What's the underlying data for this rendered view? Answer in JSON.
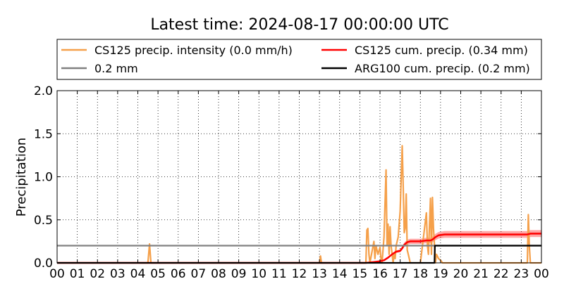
{
  "chart_data": {
    "type": "line",
    "title": "Latest time: 2024-08-17 00:00:00 UTC",
    "xlabel": "",
    "ylabel": "Precipitation",
    "x_ticks": [
      "00",
      "01",
      "02",
      "03",
      "04",
      "05",
      "06",
      "07",
      "08",
      "09",
      "10",
      "11",
      "12",
      "13",
      "14",
      "15",
      "16",
      "17",
      "18",
      "19",
      "20",
      "21",
      "22",
      "23",
      "00"
    ],
    "y_ticks": [
      "0.0",
      "0.5",
      "1.0",
      "1.5",
      "2.0"
    ],
    "xlim": [
      0,
      24
    ],
    "ylim": [
      0,
      2.0
    ],
    "grid": true,
    "legend_position": "top",
    "legend": [
      {
        "name": "CS125 precip. intensity (0.0 mm/h)",
        "color": "#f5a04a"
      },
      {
        "name": "CS125 cum. precip. (0.34 mm)",
        "color": "#ff0000"
      },
      {
        "name": "0.2 mm",
        "color": "#808080"
      },
      {
        "name": "ARG100 cum. precip. (0.2 mm)",
        "color": "#000000"
      }
    ],
    "series": [
      {
        "name": "CS125 precip. intensity (0.0 mm/h)",
        "color": "#f5a04a",
        "x": [
          0,
          4.5,
          4.58,
          4.65,
          4.75,
          13.0,
          13.05,
          13.1,
          15.3,
          15.35,
          15.4,
          15.45,
          15.5,
          15.7,
          15.75,
          15.8,
          15.9,
          16.0,
          16.05,
          16.1,
          16.2,
          16.3,
          16.35,
          16.4,
          16.45,
          16.5,
          16.55,
          16.6,
          16.65,
          16.7,
          16.75,
          16.8,
          16.9,
          17.0,
          17.1,
          17.15,
          17.2,
          17.25,
          17.3,
          17.35,
          17.4,
          17.45,
          17.5,
          17.6,
          18.0,
          18.3,
          18.35,
          18.4,
          18.5,
          18.55,
          18.6,
          18.65,
          18.7,
          18.75,
          18.8,
          18.9,
          19.0,
          19.1,
          19.2,
          23.3,
          23.35,
          23.4,
          23.45,
          23.5,
          24.0
        ],
        "y": [
          0,
          0,
          0.22,
          0,
          0,
          0,
          0.08,
          0,
          0,
          0.38,
          0.4,
          0.1,
          0,
          0.25,
          0.05,
          0.2,
          0.1,
          0.18,
          0.05,
          0,
          0.3,
          1.08,
          0.2,
          0.45,
          0.1,
          0.42,
          0.2,
          0.1,
          0,
          0.1,
          0.05,
          0.2,
          0.3,
          0.6,
          1.36,
          0.9,
          0.35,
          0.4,
          0.8,
          0.15,
          0.1,
          0.05,
          0,
          0,
          0,
          0.58,
          0.2,
          0.1,
          0.75,
          0.1,
          0.76,
          0.4,
          0.2,
          0,
          0.1,
          0.05,
          0.03,
          0,
          0,
          0,
          0.56,
          0.2,
          0,
          0,
          0
        ]
      },
      {
        "name": "CS125 cum. precip. (0.34 mm)",
        "color": "#ff0000",
        "x": [
          0,
          15.3,
          15.5,
          15.7,
          15.85,
          16.0,
          16.2,
          16.4,
          16.5,
          16.6,
          16.8,
          17.0,
          17.1,
          17.2,
          17.35,
          17.5,
          17.7,
          18.0,
          18.3,
          18.5,
          18.6,
          18.75,
          18.9,
          19.2,
          20.0,
          21.0,
          22.0,
          23.0,
          23.3,
          23.45,
          24.0
        ],
        "y": [
          0,
          0,
          0.005,
          0.01,
          0.015,
          0.02,
          0.03,
          0.06,
          0.08,
          0.1,
          0.13,
          0.14,
          0.17,
          0.21,
          0.24,
          0.25,
          0.25,
          0.25,
          0.26,
          0.26,
          0.27,
          0.3,
          0.32,
          0.33,
          0.33,
          0.33,
          0.33,
          0.33,
          0.33,
          0.34,
          0.34
        ]
      },
      {
        "name": "0.2 mm",
        "color": "#808080",
        "x": [
          0,
          24
        ],
        "y": [
          0.2,
          0.2
        ]
      },
      {
        "name": "ARG100 cum. precip. (0.2 mm)",
        "color": "#000000",
        "x": [
          0,
          18.7,
          18.72,
          24
        ],
        "y": [
          0,
          0,
          0.2,
          0.2
        ]
      }
    ]
  }
}
